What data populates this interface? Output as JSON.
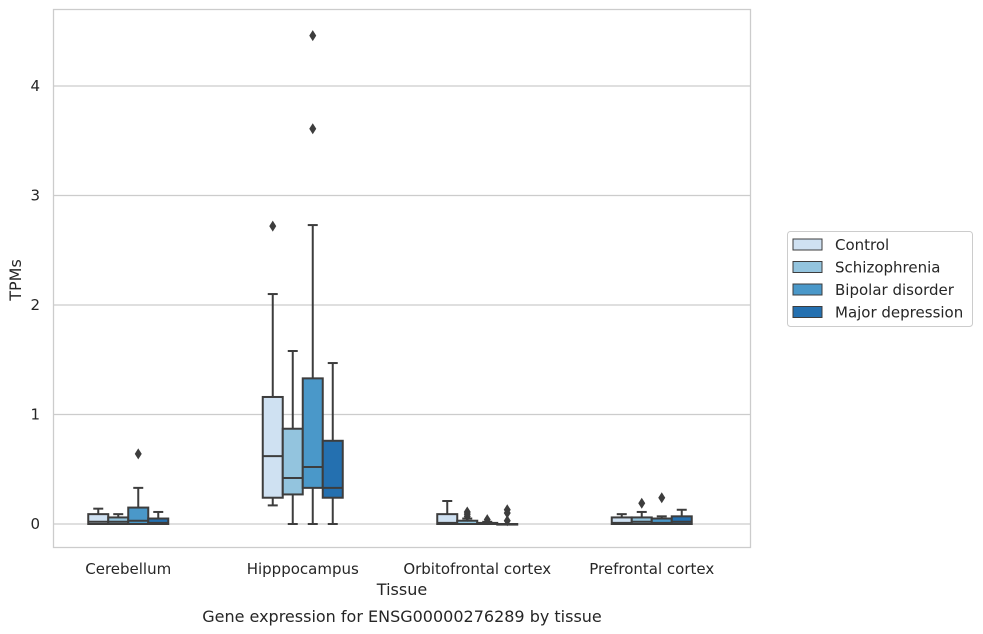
{
  "chart_data": {
    "type": "box",
    "title": "",
    "caption": "Gene expression for ENSG00000276289 by tissue",
    "xlabel": "Tissue",
    "ylabel": "TPMs",
    "ylim": [
      -0.22,
      4.7
    ],
    "yticks": [
      0,
      1,
      2,
      3,
      4
    ],
    "grid": "horizontal",
    "legend_position": "right",
    "categories": [
      "Cerebellum",
      "Hipppocampus",
      "Orbitofrontal cortex",
      "Prefrontal cortex"
    ],
    "series": [
      {
        "name": "Control",
        "color": "#cfe1f2",
        "boxes": [
          {
            "whislo": 0.0,
            "q1": 0.0,
            "med": 0.02,
            "q3": 0.09,
            "whishi": 0.14,
            "fliers": []
          },
          {
            "whislo": 0.17,
            "q1": 0.24,
            "med": 0.62,
            "q3": 1.16,
            "whishi": 2.1,
            "fliers": [
              2.72
            ]
          },
          {
            "whislo": 0.0,
            "q1": 0.0,
            "med": 0.01,
            "q3": 0.09,
            "whishi": 0.21,
            "fliers": []
          },
          {
            "whislo": 0.0,
            "q1": 0.0,
            "med": 0.01,
            "q3": 0.06,
            "whishi": 0.09,
            "fliers": []
          }
        ]
      },
      {
        "name": "Schizophrenia",
        "color": "#93c4de",
        "boxes": [
          {
            "whislo": 0.0,
            "q1": 0.0,
            "med": 0.02,
            "q3": 0.06,
            "whishi": 0.09,
            "fliers": []
          },
          {
            "whislo": 0.0,
            "q1": 0.27,
            "med": 0.42,
            "q3": 0.87,
            "whishi": 1.58,
            "fliers": []
          },
          {
            "whislo": 0.0,
            "q1": 0.0,
            "med": 0.0,
            "q3": 0.03,
            "whishi": 0.05,
            "fliers": [
              0.07,
              0.09,
              0.11
            ]
          },
          {
            "whislo": 0.0,
            "q1": 0.0,
            "med": 0.02,
            "q3": 0.06,
            "whishi": 0.11,
            "fliers": [
              0.19
            ]
          }
        ]
      },
      {
        "name": "Bipolar disorder",
        "color": "#4a98c9",
        "boxes": [
          {
            "whislo": 0.0,
            "q1": 0.0,
            "med": 0.03,
            "q3": 0.15,
            "whishi": 0.33,
            "fliers": [
              0.64
            ]
          },
          {
            "whislo": 0.0,
            "q1": 0.33,
            "med": 0.52,
            "q3": 1.33,
            "whishi": 2.73,
            "fliers": [
              3.61,
              4.46
            ]
          },
          {
            "whislo": 0.0,
            "q1": 0.0,
            "med": 0.0,
            "q3": 0.01,
            "whishi": 0.02,
            "fliers": [
              0.04
            ]
          },
          {
            "whislo": 0.0,
            "q1": 0.0,
            "med": 0.01,
            "q3": 0.05,
            "whishi": 0.07,
            "fliers": [
              0.24
            ]
          }
        ]
      },
      {
        "name": "Major depression",
        "color": "#2470b0",
        "boxes": [
          {
            "whislo": 0.0,
            "q1": 0.0,
            "med": 0.01,
            "q3": 0.05,
            "whishi": 0.11,
            "fliers": []
          },
          {
            "whislo": 0.0,
            "q1": 0.24,
            "med": 0.33,
            "q3": 0.76,
            "whishi": 1.47,
            "fliers": []
          },
          {
            "whislo": 0.0,
            "q1": 0.0,
            "med": 0.0,
            "q3": 0.0,
            "whishi": 0.0,
            "fliers": [
              0.03,
              0.1,
              0.13
            ]
          },
          {
            "whislo": 0.0,
            "q1": 0.0,
            "med": 0.02,
            "q3": 0.07,
            "whishi": 0.13,
            "fliers": []
          }
        ]
      }
    ]
  }
}
